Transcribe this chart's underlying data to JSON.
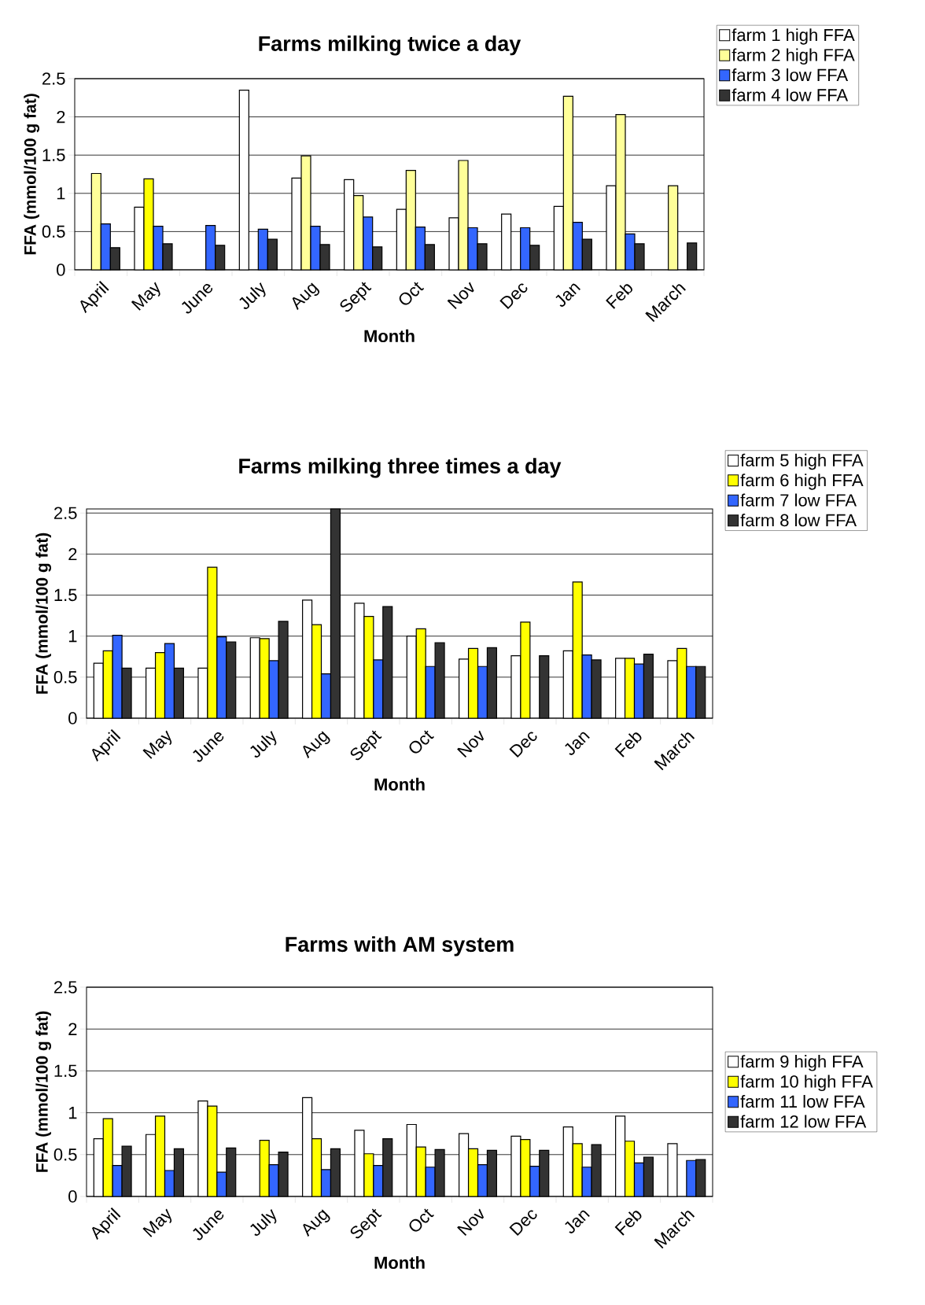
{
  "chart_data": [
    {
      "type": "bar",
      "title": "Farms milking twice a day",
      "xlabel": "Month",
      "ylabel": "FFA (mmol/100 g fat)",
      "categories": [
        "April",
        "May",
        "June",
        "July",
        "Aug",
        "Sept",
        "Oct",
        "Nov",
        "Dec",
        "Jan",
        "Feb",
        "March"
      ],
      "series": [
        {
          "name": "farm 1 high FFA",
          "color": "#ffffff",
          "values": [
            null,
            0.82,
            null,
            2.35,
            1.2,
            1.18,
            0.79,
            0.68,
            0.73,
            0.83,
            1.1,
            null
          ]
        },
        {
          "name": "farm 2 high FFA",
          "color": "#ffff99",
          "colors": [
            "#ffff99",
            "#ffff00",
            "#ffff99",
            "#ffff99",
            "#ffff99",
            "#ffff99",
            "#ffff99",
            "#ffff99",
            "#ffff99",
            "#ffff99",
            "#ffff99",
            "#ffff99"
          ],
          "values": [
            1.26,
            1.19,
            null,
            null,
            1.49,
            0.97,
            1.3,
            1.43,
            null,
            2.27,
            2.03,
            1.1
          ]
        },
        {
          "name": "farm 3 low FFA",
          "color": "#3366ff",
          "values": [
            0.6,
            0.57,
            0.58,
            0.53,
            0.57,
            0.69,
            0.56,
            0.55,
            0.55,
            0.62,
            0.47,
            null
          ]
        },
        {
          "name": "farm 4 low FFA",
          "color": "#333333",
          "values": [
            0.29,
            0.34,
            0.32,
            0.4,
            0.33,
            0.3,
            0.33,
            0.34,
            0.32,
            0.4,
            0.34,
            0.35
          ]
        }
      ],
      "ylim": [
        0,
        2.5
      ],
      "yticks": [
        0,
        0.5,
        1,
        1.5,
        2,
        2.5
      ],
      "grid": "y",
      "legend": "top right"
    },
    {
      "type": "bar",
      "title": "Farms milking three times a day",
      "xlabel": "Month",
      "ylabel": "FFA (mmol/100 g fat)",
      "categories": [
        "April",
        "May",
        "June",
        "July",
        "Aug",
        "Sept",
        "Oct",
        "Nov",
        "Dec",
        "Jan",
        "Feb",
        "March"
      ],
      "series": [
        {
          "name": "farm 5 high FFA",
          "color": "#ffffff",
          "values": [
            0.67,
            0.61,
            0.61,
            0.98,
            1.44,
            1.4,
            1.0,
            0.72,
            0.76,
            0.82,
            0.73,
            0.7
          ]
        },
        {
          "name": "farm 6 high FFA",
          "color": "#ffff00",
          "values": [
            0.82,
            0.8,
            1.84,
            0.97,
            1.14,
            1.24,
            1.09,
            0.85,
            1.17,
            1.66,
            0.73,
            0.85
          ]
        },
        {
          "name": "farm 7 low FFA",
          "color": "#3366ff",
          "values": [
            1.01,
            0.91,
            0.99,
            0.7,
            0.54,
            0.71,
            0.63,
            0.63,
            null,
            0.77,
            0.66,
            0.63
          ]
        },
        {
          "name": "farm 8 low FFA",
          "color": "#333333",
          "values": [
            0.61,
            0.61,
            0.93,
            1.18,
            2.55,
            1.36,
            0.92,
            0.86,
            0.76,
            0.71,
            0.78,
            0.63
          ]
        }
      ],
      "ylim": [
        0,
        2.55
      ],
      "yticks": [
        0,
        0.5,
        1,
        1.5,
        2,
        2.5
      ],
      "grid": "y",
      "legend": "top right"
    },
    {
      "type": "bar",
      "title": "Farms with AM system",
      "xlabel": "Month",
      "ylabel": "FFA (mmol/100 g fat)",
      "categories": [
        "April",
        "May",
        "June",
        "July",
        "Aug",
        "Sept",
        "Oct",
        "Nov",
        "Dec",
        "Jan",
        "Feb",
        "March"
      ],
      "series": [
        {
          "name": "farm 9 high FFA",
          "color": "#ffffff",
          "values": [
            0.69,
            0.74,
            1.14,
            null,
            1.18,
            0.79,
            0.86,
            0.75,
            0.72,
            0.83,
            0.96,
            0.63
          ]
        },
        {
          "name": "farm 10 high FFA",
          "color": "#ffff00",
          "values": [
            0.93,
            0.96,
            1.08,
            0.67,
            0.69,
            0.51,
            0.59,
            0.57,
            0.68,
            0.63,
            0.66,
            null
          ]
        },
        {
          "name": "farm 11 low FFA",
          "color": "#3366ff",
          "values": [
            0.37,
            0.31,
            0.29,
            0.38,
            0.32,
            0.37,
            0.35,
            0.38,
            0.36,
            0.35,
            0.4,
            0.43
          ]
        },
        {
          "name": "farm 12 low FFA",
          "color": "#333333",
          "values": [
            0.6,
            0.57,
            0.58,
            0.53,
            0.57,
            0.69,
            0.56,
            0.55,
            0.55,
            0.62,
            0.47,
            0.44
          ]
        }
      ],
      "ylim": [
        0,
        2.5
      ],
      "yticks": [
        0,
        0.5,
        1,
        1.5,
        2,
        2.5
      ],
      "grid": "y",
      "legend": "right"
    }
  ]
}
